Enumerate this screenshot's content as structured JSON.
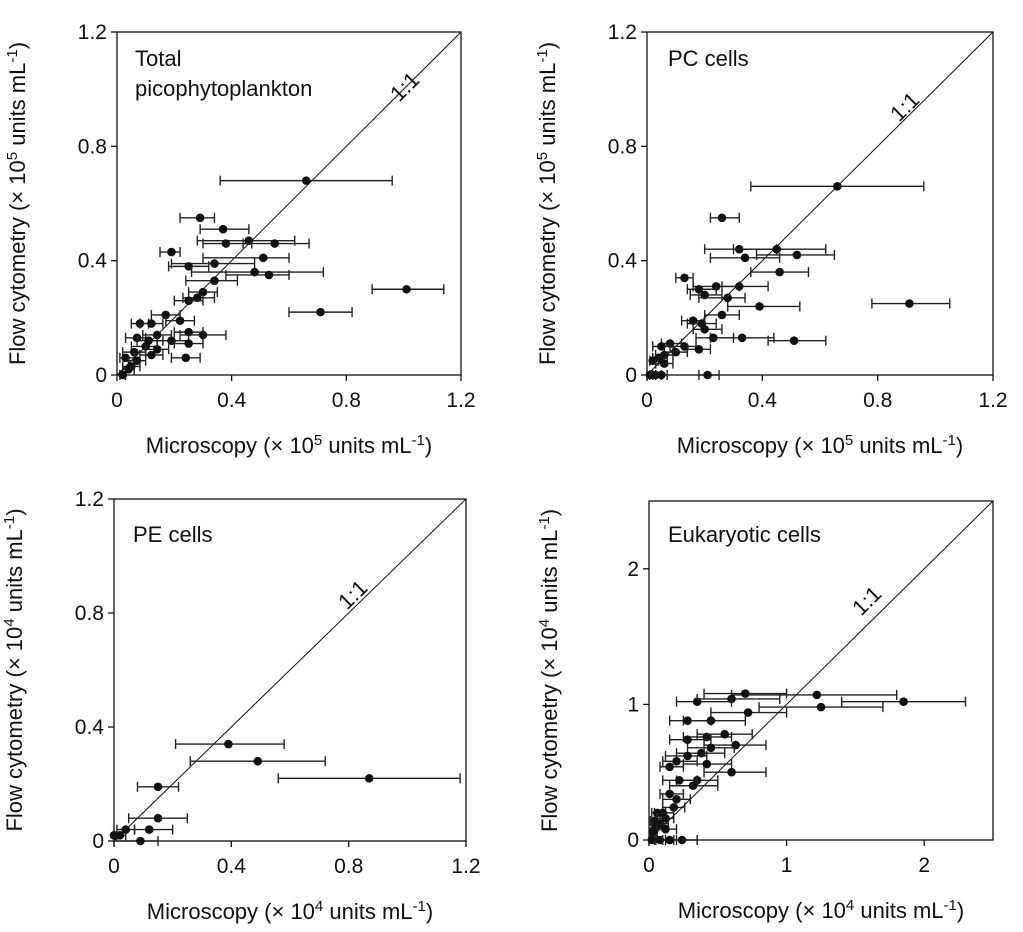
{
  "chart_data": [
    {
      "type": "scatter",
      "title": [
        "Total",
        "picophytoplankton"
      ],
      "xlabel": {
        "text": "Microscopy (× 10",
        "sup": "5",
        "text2": " units mL",
        "sup2": "-1",
        "text3": ")"
      },
      "ylabel": {
        "text": "Flow cytometry (× 10",
        "sup": "5",
        "text2": " units mL",
        "sup2": "-1",
        "text3": ")"
      },
      "xlim": [
        0,
        1.2
      ],
      "ylim": [
        0,
        1.2
      ],
      "xticks": [
        0,
        0.4,
        0.8,
        1.2
      ],
      "yticks": [
        0,
        0.4,
        0.8,
        1.2
      ],
      "xtick_labels": [
        "0",
        "0.4",
        "0.8",
        "1.2"
      ],
      "ytick_labels": [
        "0",
        "0.4",
        "0.8",
        "1.2"
      ],
      "ref_label": "1:1",
      "points": [
        {
          "x": 0.66,
          "y": 0.68,
          "xerr": [
            0.36,
            0.96
          ]
        },
        {
          "x": 0.29,
          "y": 0.55,
          "xerr": [
            0.22,
            0.34
          ]
        },
        {
          "x": 0.37,
          "y": 0.51,
          "xerr": [
            0.29,
            0.46
          ]
        },
        {
          "x": 0.46,
          "y": 0.47,
          "xerr": [
            0.28,
            0.62
          ]
        },
        {
          "x": 0.38,
          "y": 0.46,
          "xerr": [
            0.3,
            0.47
          ]
        },
        {
          "x": 0.55,
          "y": 0.46,
          "xerr": [
            0.44,
            0.67
          ]
        },
        {
          "x": 0.19,
          "y": 0.43,
          "xerr": [
            0.15,
            0.22
          ]
        },
        {
          "x": 0.51,
          "y": 0.41,
          "xerr": [
            0.3,
            0.6
          ]
        },
        {
          "x": 0.34,
          "y": 0.39,
          "xerr": [
            0.19,
            0.48
          ]
        },
        {
          "x": 0.25,
          "y": 0.38,
          "xerr": [
            0.18,
            0.32
          ]
        },
        {
          "x": 0.48,
          "y": 0.36,
          "xerr": [
            0.26,
            0.72
          ]
        },
        {
          "x": 0.53,
          "y": 0.35,
          "xerr": [
            0.38,
            0.6
          ]
        },
        {
          "x": 0.34,
          "y": 0.33,
          "xerr": [
            0.24,
            0.42
          ]
        },
        {
          "x": 0.3,
          "y": 0.29,
          "xerr": [
            0.25,
            0.35
          ]
        },
        {
          "x": 1.01,
          "y": 0.3,
          "xerr": [
            0.89,
            1.14
          ]
        },
        {
          "x": 0.28,
          "y": 0.27,
          "xerr": [
            0.23,
            0.34
          ]
        },
        {
          "x": 0.25,
          "y": 0.26,
          "xerr": [
            0.2,
            0.3
          ]
        },
        {
          "x": 0.71,
          "y": 0.22,
          "xerr": [
            0.6,
            0.82
          ]
        },
        {
          "x": 0.17,
          "y": 0.21,
          "xerr": [
            0.12,
            0.22
          ]
        },
        {
          "x": 0.22,
          "y": 0.19,
          "xerr": [
            0.17,
            0.27
          ]
        },
        {
          "x": 0.08,
          "y": 0.18,
          "xerr": [
            0.05,
            0.11
          ]
        },
        {
          "x": 0.12,
          "y": 0.18,
          "xerr": [
            0.08,
            0.16
          ]
        },
        {
          "x": 0.25,
          "y": 0.15,
          "xerr": [
            0.2,
            0.3
          ]
        },
        {
          "x": 0.3,
          "y": 0.14,
          "xerr": [
            0.22,
            0.38
          ]
        },
        {
          "x": 0.14,
          "y": 0.14,
          "xerr": [
            0.09,
            0.19
          ]
        },
        {
          "x": 0.07,
          "y": 0.13,
          "xerr": [
            0.03,
            0.1
          ]
        },
        {
          "x": 0.11,
          "y": 0.12,
          "xerr": [
            0.07,
            0.16
          ]
        },
        {
          "x": 0.19,
          "y": 0.12,
          "xerr": [
            0.14,
            0.25
          ]
        },
        {
          "x": 0.25,
          "y": 0.11,
          "xerr": [
            0.2,
            0.3
          ]
        },
        {
          "x": 0.1,
          "y": 0.1,
          "xerr": [
            0.05,
            0.14
          ]
        },
        {
          "x": 0.14,
          "y": 0.09,
          "xerr": [
            0.1,
            0.18
          ]
        },
        {
          "x": 0.06,
          "y": 0.08,
          "xerr": [
            0.02,
            0.1
          ]
        },
        {
          "x": 0.12,
          "y": 0.07,
          "xerr": [
            0.08,
            0.16
          ]
        },
        {
          "x": 0.03,
          "y": 0.06,
          "xerr": [
            0.01,
            0.06
          ]
        },
        {
          "x": 0.24,
          "y": 0.06,
          "xerr": [
            0.19,
            0.29
          ]
        },
        {
          "x": 0.07,
          "y": 0.05,
          "xerr": [
            0.04,
            0.1
          ]
        },
        {
          "x": 0.05,
          "y": 0.03,
          "xerr": [
            0.02,
            0.08
          ]
        },
        {
          "x": 0.04,
          "y": 0.02,
          "xerr": [
            0.02,
            0.06
          ]
        },
        {
          "x": 0.02,
          "y": 0.0,
          "xerr": [
            0.01,
            0.03
          ]
        }
      ]
    },
    {
      "type": "scatter",
      "title": [
        "PC cells"
      ],
      "xlabel": {
        "text": "Microscopy (× 10",
        "sup": "5",
        "text2": " units mL",
        "sup2": "-1",
        "text3": ")"
      },
      "ylabel": {
        "text": "Flow cytometry (× 10",
        "sup": "5",
        "text2": " units mL",
        "sup2": "-1",
        "text3": ")"
      },
      "xlim": [
        0,
        1.2
      ],
      "ylim": [
        0,
        1.2
      ],
      "xticks": [
        0,
        0.4,
        0.8,
        1.2
      ],
      "yticks": [
        0,
        0.4,
        0.8,
        1.2
      ],
      "xtick_labels": [
        "0",
        "0.4",
        "0.8",
        "1.2"
      ],
      "ytick_labels": [
        "0",
        "0.4",
        "0.8",
        "1.2"
      ],
      "ref_label": "1:1",
      "points": [
        {
          "x": 0.66,
          "y": 0.66,
          "xerr": [
            0.36,
            0.96
          ]
        },
        {
          "x": 0.26,
          "y": 0.55,
          "xerr": [
            0.22,
            0.32
          ]
        },
        {
          "x": 0.32,
          "y": 0.44,
          "xerr": [
            0.2,
            0.45
          ]
        },
        {
          "x": 0.45,
          "y": 0.44,
          "xerr": [
            0.3,
            0.62
          ]
        },
        {
          "x": 0.34,
          "y": 0.41,
          "xerr": [
            0.22,
            0.46
          ]
        },
        {
          "x": 0.52,
          "y": 0.42,
          "xerr": [
            0.38,
            0.65
          ]
        },
        {
          "x": 0.46,
          "y": 0.36,
          "xerr": [
            0.36,
            0.56
          ]
        },
        {
          "x": 0.13,
          "y": 0.34,
          "xerr": [
            0.1,
            0.16
          ]
        },
        {
          "x": 0.24,
          "y": 0.31,
          "xerr": [
            0.16,
            0.32
          ]
        },
        {
          "x": 0.32,
          "y": 0.31,
          "xerr": [
            0.26,
            0.42
          ]
        },
        {
          "x": 0.18,
          "y": 0.3,
          "xerr": [
            0.14,
            0.24
          ]
        },
        {
          "x": 0.2,
          "y": 0.28,
          "xerr": [
            0.15,
            0.26
          ]
        },
        {
          "x": 0.28,
          "y": 0.27,
          "xerr": [
            0.18,
            0.34
          ]
        },
        {
          "x": 0.91,
          "y": 0.25,
          "xerr": [
            0.78,
            1.05
          ]
        },
        {
          "x": 0.39,
          "y": 0.24,
          "xerr": [
            0.28,
            0.53
          ]
        },
        {
          "x": 0.26,
          "y": 0.21,
          "xerr": [
            0.2,
            0.32
          ]
        },
        {
          "x": 0.16,
          "y": 0.19,
          "xerr": [
            0.12,
            0.2
          ]
        },
        {
          "x": 0.19,
          "y": 0.18,
          "xerr": [
            0.14,
            0.24
          ]
        },
        {
          "x": 0.2,
          "y": 0.16,
          "xerr": [
            0.16,
            0.26
          ]
        },
        {
          "x": 0.23,
          "y": 0.13,
          "xerr": [
            0.17,
            0.3
          ]
        },
        {
          "x": 0.33,
          "y": 0.13,
          "xerr": [
            0.22,
            0.44
          ]
        },
        {
          "x": 0.51,
          "y": 0.12,
          "xerr": [
            0.42,
            0.62
          ]
        },
        {
          "x": 0.08,
          "y": 0.11,
          "xerr": [
            0.05,
            0.12
          ]
        },
        {
          "x": 0.13,
          "y": 0.1,
          "xerr": [
            0.09,
            0.17
          ]
        },
        {
          "x": 0.05,
          "y": 0.1,
          "xerr": [
            0.02,
            0.08
          ]
        },
        {
          "x": 0.18,
          "y": 0.09,
          "xerr": [
            0.14,
            0.22
          ]
        },
        {
          "x": 0.1,
          "y": 0.08,
          "xerr": [
            0.06,
            0.14
          ]
        },
        {
          "x": 0.06,
          "y": 0.07,
          "xerr": [
            0.03,
            0.09
          ]
        },
        {
          "x": 0.04,
          "y": 0.06,
          "xerr": [
            0.02,
            0.07
          ]
        },
        {
          "x": 0.02,
          "y": 0.05,
          "xerr": [
            0.01,
            0.04
          ]
        },
        {
          "x": 0.06,
          "y": 0.04,
          "xerr": [
            0.03,
            0.09
          ]
        },
        {
          "x": 0.01,
          "y": 0.0,
          "xerr": [
            0.0,
            0.02
          ]
        },
        {
          "x": 0.03,
          "y": 0.0,
          "xerr": [
            0.01,
            0.05
          ]
        },
        {
          "x": 0.05,
          "y": 0.0,
          "xerr": [
            0.03,
            0.07
          ]
        },
        {
          "x": 0.21,
          "y": 0.0,
          "xerr": [
            0.18,
            0.25
          ]
        }
      ]
    },
    {
      "type": "scatter",
      "title": [
        "PE cells"
      ],
      "xlabel": {
        "text": "Microscopy (× 10",
        "sup": "4",
        "text2": " units mL",
        "sup2": "-1",
        "text3": ")"
      },
      "ylabel": {
        "text": "Flow cytometry (× 10",
        "sup": "4",
        "text2": " units mL",
        "sup2": "-1",
        "text3": ")"
      },
      "xlim": [
        0,
        1.2
      ],
      "ylim": [
        0,
        1.2
      ],
      "xticks": [
        0,
        0.4,
        0.8,
        1.2
      ],
      "yticks": [
        0,
        0.4,
        0.8,
        1.2
      ],
      "xtick_labels": [
        "0",
        "0.4",
        "0.8",
        "1.2"
      ],
      "ytick_labels": [
        "0",
        "0.4",
        "0.8",
        "1.2"
      ],
      "ref_label": "1:1",
      "points": [
        {
          "x": 0.39,
          "y": 0.34,
          "xerr": [
            0.21,
            0.58
          ]
        },
        {
          "x": 0.49,
          "y": 0.28,
          "xerr": [
            0.26,
            0.72
          ]
        },
        {
          "x": 0.87,
          "y": 0.22,
          "xerr": [
            0.56,
            1.18
          ]
        },
        {
          "x": 0.15,
          "y": 0.19,
          "xerr": [
            0.08,
            0.22
          ]
        },
        {
          "x": 0.15,
          "y": 0.08,
          "xerr": [
            0.05,
            0.25
          ]
        },
        {
          "x": 0.12,
          "y": 0.04,
          "xerr": [
            0.07,
            0.2
          ]
        },
        {
          "x": 0.04,
          "y": 0.04,
          "xerr": [
            0.01,
            0.07
          ]
        },
        {
          "x": 0.02,
          "y": 0.02,
          "xerr": [
            0.0,
            0.04
          ]
        },
        {
          "x": 0.0,
          "y": 0.02,
          "xerr": [
            0.0,
            0.01
          ]
        },
        {
          "x": 0.09,
          "y": 0.0,
          "xerr": [
            0.0,
            0.15
          ]
        }
      ]
    },
    {
      "type": "scatter",
      "title": [
        "Eukaryotic cells"
      ],
      "xlabel": {
        "text": "Microscopy (× 10",
        "sup": "4",
        "text2": " units mL",
        "sup2": "-1",
        "text3": ")"
      },
      "ylabel": {
        "text": "Flow cytometry (× 10",
        "sup": "4",
        "text2": " units mL",
        "sup2": "-1",
        "text3": ")"
      },
      "xlim": [
        0,
        2.5
      ],
      "ylim": [
        0,
        2.5
      ],
      "xticks": [
        0,
        1,
        2
      ],
      "yticks": [
        0,
        1,
        2
      ],
      "xtick_labels": [
        "0",
        "1",
        "2"
      ],
      "ytick_labels": [
        "0",
        "1",
        "2"
      ],
      "ref_label": "1:1",
      "points": [
        {
          "x": 1.85,
          "y": 1.02,
          "xerr": [
            1.4,
            2.3
          ]
        },
        {
          "x": 1.22,
          "y": 1.07,
          "xerr": [
            0.6,
            1.8
          ]
        },
        {
          "x": 1.25,
          "y": 0.98,
          "xerr": [
            0.8,
            1.7
          ]
        },
        {
          "x": 0.7,
          "y": 1.08,
          "xerr": [
            0.4,
            1.0
          ]
        },
        {
          "x": 0.6,
          "y": 1.04,
          "xerr": [
            0.35,
            0.95
          ]
        },
        {
          "x": 0.35,
          "y": 1.02,
          "xerr": [
            0.2,
            0.6
          ]
        },
        {
          "x": 0.72,
          "y": 0.94,
          "xerr": [
            0.45,
            1.0
          ]
        },
        {
          "x": 0.45,
          "y": 0.88,
          "xerr": [
            0.25,
            0.7
          ]
        },
        {
          "x": 0.28,
          "y": 0.88,
          "xerr": [
            0.15,
            0.45
          ]
        },
        {
          "x": 0.42,
          "y": 0.76,
          "xerr": [
            0.25,
            0.6
          ]
        },
        {
          "x": 0.28,
          "y": 0.74,
          "xerr": [
            0.15,
            0.45
          ]
        },
        {
          "x": 0.55,
          "y": 0.78,
          "xerr": [
            0.35,
            0.75
          ]
        },
        {
          "x": 0.63,
          "y": 0.7,
          "xerr": [
            0.4,
            0.85
          ]
        },
        {
          "x": 0.45,
          "y": 0.68,
          "xerr": [
            0.28,
            0.62
          ]
        },
        {
          "x": 0.38,
          "y": 0.64,
          "xerr": [
            0.2,
            0.55
          ]
        },
        {
          "x": 0.28,
          "y": 0.62,
          "xerr": [
            0.12,
            0.42
          ]
        },
        {
          "x": 0.2,
          "y": 0.58,
          "xerr": [
            0.1,
            0.35
          ]
        },
        {
          "x": 0.15,
          "y": 0.54,
          "xerr": [
            0.08,
            0.25
          ]
        },
        {
          "x": 0.42,
          "y": 0.56,
          "xerr": [
            0.25,
            0.6
          ]
        },
        {
          "x": 0.6,
          "y": 0.5,
          "xerr": [
            0.4,
            0.85
          ]
        },
        {
          "x": 0.35,
          "y": 0.44,
          "xerr": [
            0.2,
            0.5
          ]
        },
        {
          "x": 0.22,
          "y": 0.44,
          "xerr": [
            0.1,
            0.35
          ]
        },
        {
          "x": 0.32,
          "y": 0.4,
          "xerr": [
            0.15,
            0.5
          ]
        },
        {
          "x": 0.15,
          "y": 0.34,
          "xerr": [
            0.08,
            0.25
          ]
        },
        {
          "x": 0.2,
          "y": 0.3,
          "xerr": [
            0.1,
            0.3
          ]
        },
        {
          "x": 0.18,
          "y": 0.24,
          "xerr": [
            0.1,
            0.26
          ]
        },
        {
          "x": 0.1,
          "y": 0.2,
          "xerr": [
            0.04,
            0.18
          ]
        },
        {
          "x": 0.06,
          "y": 0.2,
          "xerr": [
            0.02,
            0.12
          ]
        },
        {
          "x": 0.12,
          "y": 0.16,
          "xerr": [
            0.06,
            0.18
          ]
        },
        {
          "x": 0.04,
          "y": 0.14,
          "xerr": [
            0.01,
            0.08
          ]
        },
        {
          "x": 0.08,
          "y": 0.12,
          "xerr": [
            0.03,
            0.14
          ]
        },
        {
          "x": 0.05,
          "y": 0.1,
          "xerr": [
            0.02,
            0.1
          ]
        },
        {
          "x": 0.12,
          "y": 0.08,
          "xerr": [
            0.06,
            0.2
          ]
        },
        {
          "x": 0.03,
          "y": 0.06,
          "xerr": [
            0.01,
            0.06
          ]
        },
        {
          "x": 0.02,
          "y": 0.0,
          "xerr": [
            0.0,
            0.05
          ]
        },
        {
          "x": 0.08,
          "y": 0.0,
          "xerr": [
            0.04,
            0.12
          ]
        },
        {
          "x": 0.15,
          "y": 0.0,
          "xerr": [
            0.1,
            0.2
          ]
        },
        {
          "x": 0.24,
          "y": 0.0,
          "xerr": [
            0.18,
            0.35
          ]
        }
      ]
    }
  ]
}
